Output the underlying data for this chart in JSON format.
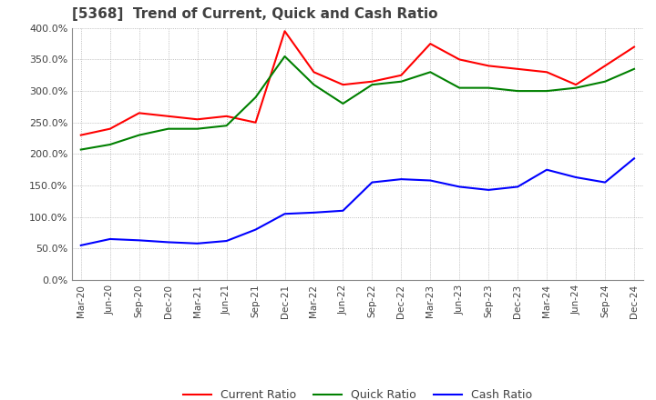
{
  "title": "[5368]  Trend of Current, Quick and Cash Ratio",
  "x_labels": [
    "Mar-20",
    "Jun-20",
    "Sep-20",
    "Dec-20",
    "Mar-21",
    "Jun-21",
    "Sep-21",
    "Dec-21",
    "Mar-22",
    "Jun-22",
    "Sep-22",
    "Dec-22",
    "Mar-23",
    "Jun-23",
    "Sep-23",
    "Dec-23",
    "Mar-24",
    "Jun-24",
    "Sep-24",
    "Dec-24"
  ],
  "current_ratio": [
    230,
    240,
    265,
    260,
    255,
    260,
    250,
    395,
    330,
    310,
    315,
    325,
    375,
    350,
    340,
    335,
    330,
    310,
    340,
    370
  ],
  "quick_ratio": [
    207,
    215,
    230,
    240,
    240,
    245,
    290,
    355,
    310,
    280,
    310,
    315,
    330,
    305,
    305,
    300,
    300,
    305,
    315,
    335
  ],
  "cash_ratio": [
    55,
    65,
    63,
    60,
    58,
    62,
    80,
    105,
    107,
    110,
    155,
    160,
    158,
    148,
    143,
    148,
    175,
    163,
    155,
    193
  ],
  "ylim": [
    0,
    400
  ],
  "yticks": [
    0,
    50,
    100,
    150,
    200,
    250,
    300,
    350,
    400
  ],
  "current_color": "#FF0000",
  "quick_color": "#008000",
  "cash_color": "#0000FF",
  "bg_color": "#ffffff",
  "grid_color": "#aaaaaa",
  "title_color": "#404040",
  "title_fontsize": 11,
  "legend_fontsize": 9
}
